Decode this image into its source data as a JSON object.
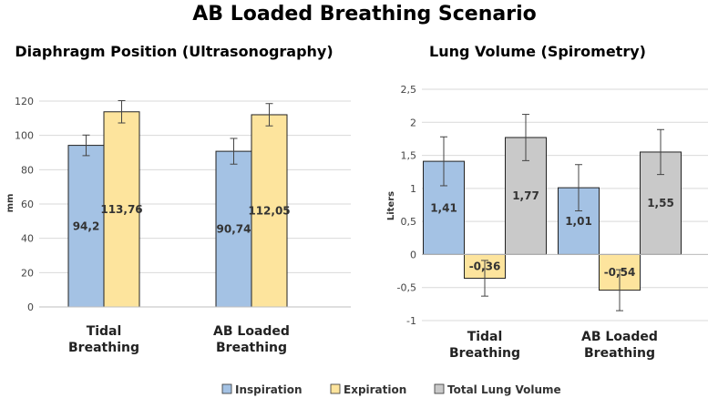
{
  "figure_title": "AB Loaded Breathing Scenario",
  "legend": [
    {
      "name": "Inspiration",
      "color": "#a4c2e4"
    },
    {
      "name": "Expiration",
      "color": "#fde49d"
    },
    {
      "name": "Total Lung Volume",
      "color": "#c9c9c9"
    }
  ],
  "chart_data": [
    {
      "type": "bar",
      "title": "Diaphragm Position (Ultrasonography)",
      "xlabel": "",
      "ylabel": "mm",
      "ylim": [
        0,
        120
      ],
      "yticks": [
        0,
        20,
        40,
        60,
        80,
        100,
        120
      ],
      "ytick_labels": [
        "0",
        "20",
        "40",
        "60",
        "80",
        "100",
        "120"
      ],
      "grid": true,
      "categories": [
        [
          "Tidal",
          "Breathing"
        ],
        [
          "AB Loaded",
          "Breathing"
        ]
      ],
      "series": [
        {
          "name": "Inspiration",
          "color": "#a4c2e4",
          "values": [
            94.2,
            90.74
          ],
          "labels": [
            "94,2",
            "90,74"
          ],
          "errors": [
            6,
            7.5
          ]
        },
        {
          "name": "Expiration",
          "color": "#fde49d",
          "values": [
            113.76,
            112.05
          ],
          "labels": [
            "113,76",
            "112,05"
          ],
          "errors": [
            6.5,
            6.5
          ]
        }
      ]
    },
    {
      "type": "bar",
      "title": "Lung Volume (Spirometry)",
      "xlabel": "",
      "ylabel": "Liters",
      "ylim": [
        -1,
        2.5
      ],
      "yticks": [
        -1,
        -0.5,
        0,
        0.5,
        1,
        1.5,
        2,
        2.5
      ],
      "ytick_labels": [
        "-1",
        "-0,5",
        "0",
        "0,5",
        "1",
        "1,5",
        "2",
        "2,5"
      ],
      "grid": true,
      "categories": [
        [
          "Tidal",
          "Breathing"
        ],
        [
          "AB Loaded",
          "Breathing"
        ]
      ],
      "series": [
        {
          "name": "Inspiration",
          "color": "#a4c2e4",
          "values": [
            1.41,
            1.01
          ],
          "labels": [
            "1,41",
            "1,01"
          ],
          "errors": [
            0.37,
            0.35
          ]
        },
        {
          "name": "Expiration",
          "color": "#fde49d",
          "values": [
            -0.36,
            -0.54
          ],
          "labels": [
            "-0,36",
            "-0,54"
          ],
          "errors": [
            0.27,
            0.31
          ]
        },
        {
          "name": "Total Lung Volume",
          "color": "#c9c9c9",
          "values": [
            1.77,
            1.55
          ],
          "labels": [
            "1,77",
            "1,55"
          ],
          "errors": [
            0.35,
            0.34
          ]
        }
      ]
    }
  ]
}
